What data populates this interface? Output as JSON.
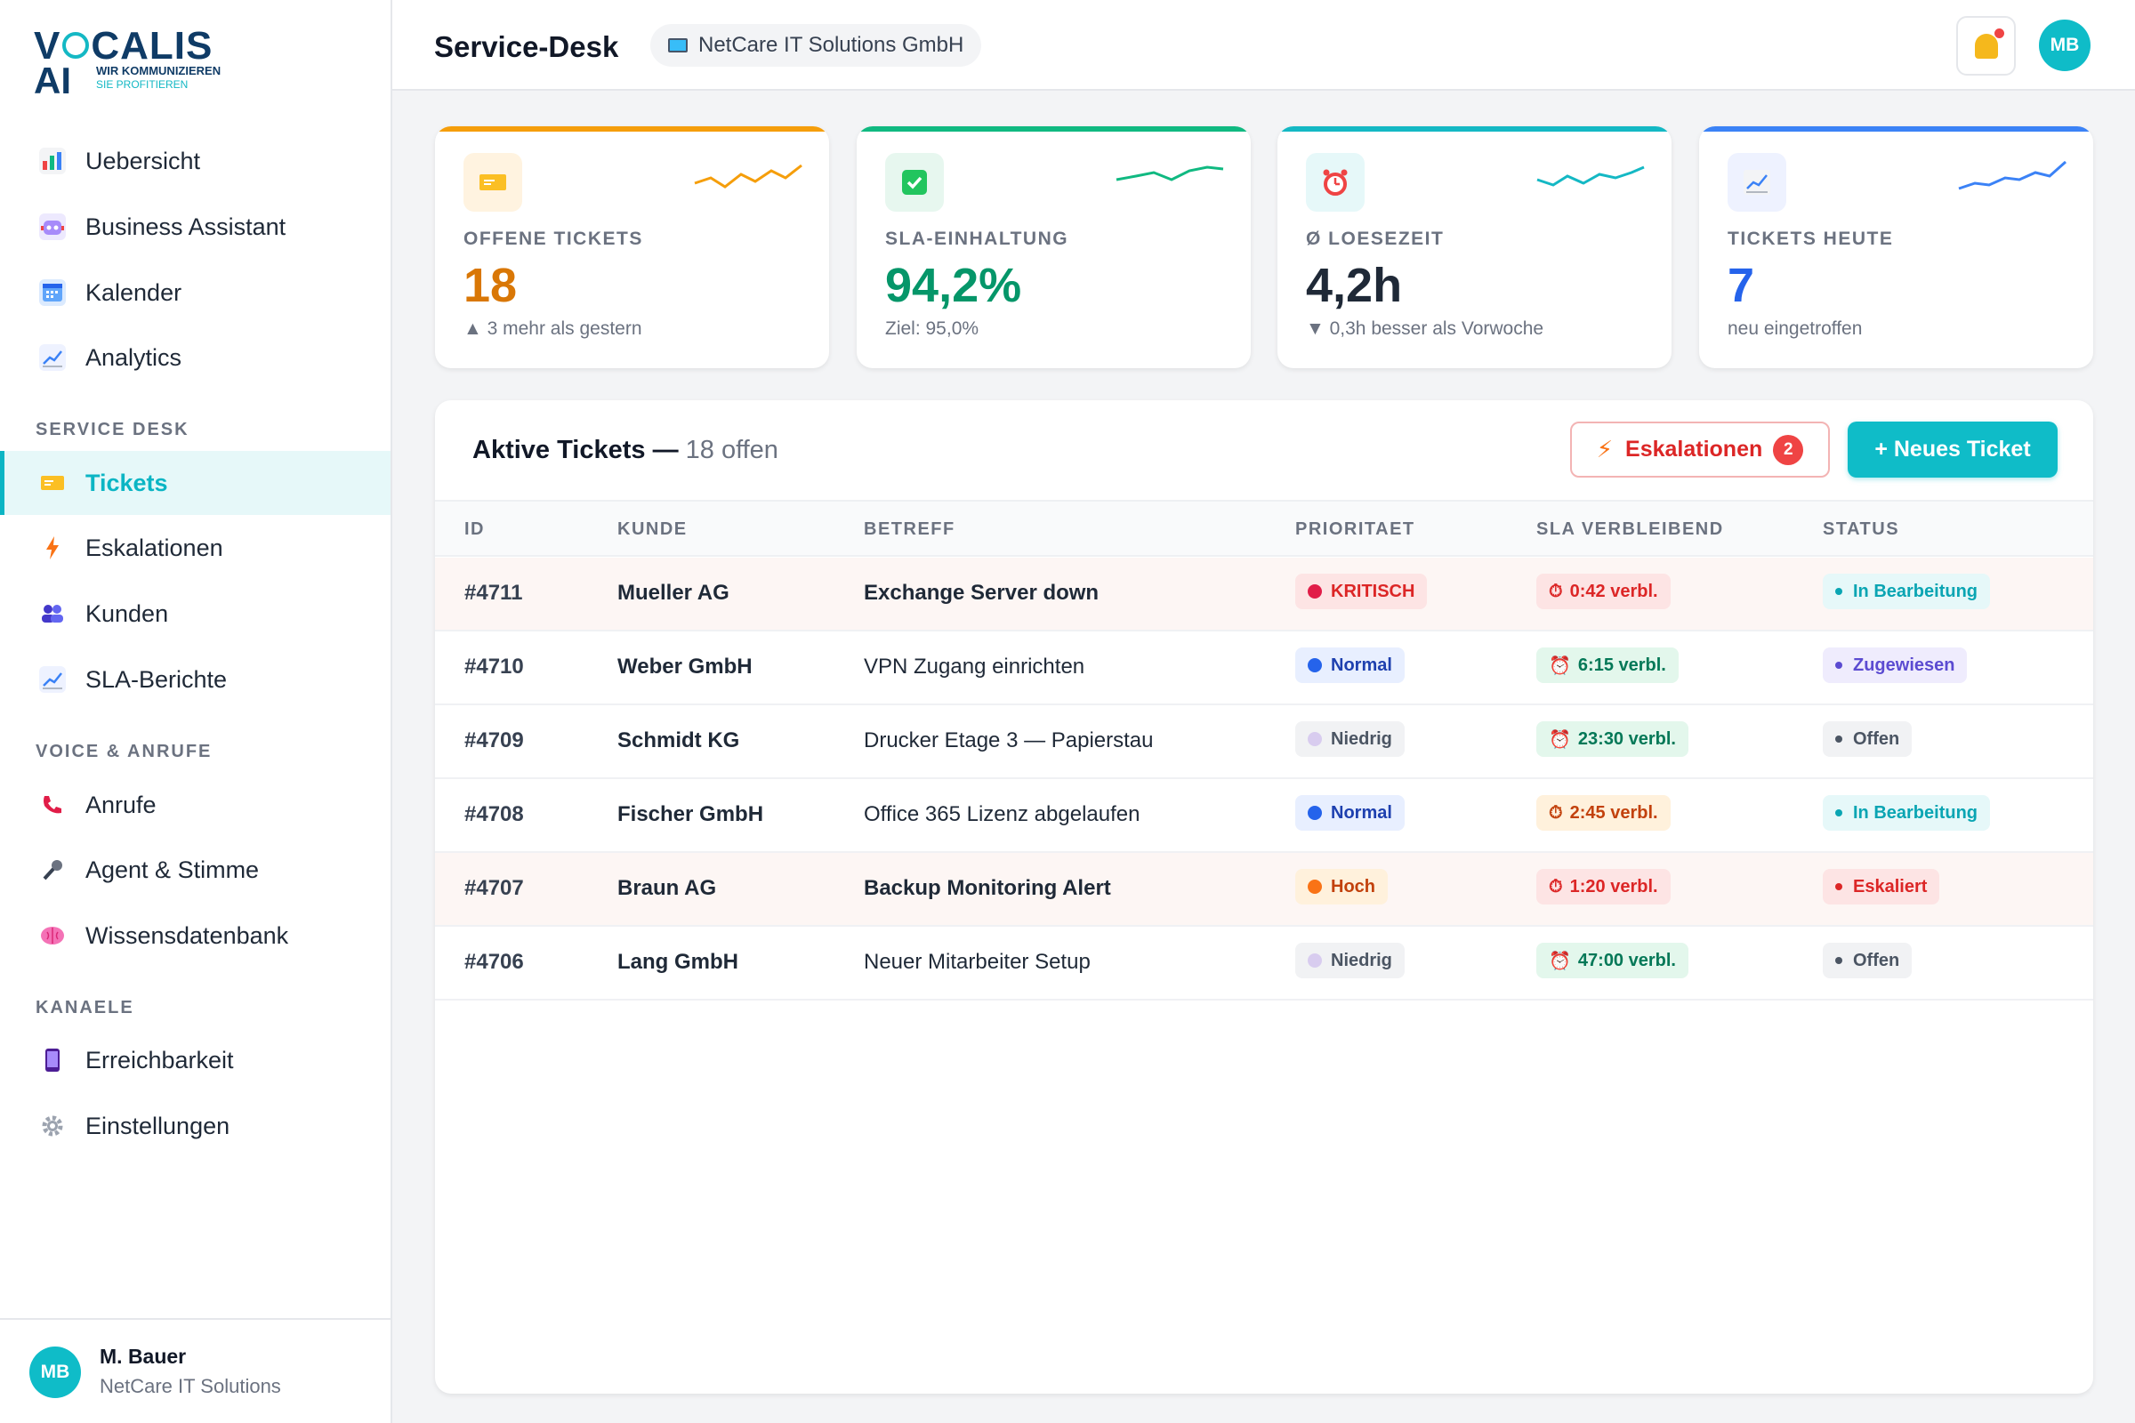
{
  "brand": {
    "line1": "V",
    "line1b": "CALIS",
    "line2": "AI",
    "tag1": "WIR KOMMUNIZIEREN",
    "tag2": "SIE PROFITIEREN"
  },
  "sidebar": {
    "items_top": [
      {
        "label": "Uebersicht",
        "icon": "bar-chart-icon"
      },
      {
        "label": "Business Assistant",
        "icon": "robot-icon"
      },
      {
        "label": "Kalender",
        "icon": "calendar-icon"
      },
      {
        "label": "Analytics",
        "icon": "chart-up-icon"
      }
    ],
    "section_service": "SERVICE DESK",
    "items_service": [
      {
        "label": "Tickets",
        "icon": "ticket-icon"
      },
      {
        "label": "Eskalationen",
        "icon": "lightning-icon"
      },
      {
        "label": "Kunden",
        "icon": "users-icon"
      },
      {
        "label": "SLA-Berichte",
        "icon": "chart-up-icon"
      }
    ],
    "section_voice": "VOICE & ANRUFE",
    "items_voice": [
      {
        "label": "Anrufe",
        "icon": "phone-icon"
      },
      {
        "label": "Agent & Stimme",
        "icon": "microphone-icon"
      },
      {
        "label": "Wissensdatenbank",
        "icon": "brain-icon"
      }
    ],
    "section_channels": "KANAELE",
    "items_channels": [
      {
        "label": "Erreichbarkeit",
        "icon": "phone-device-icon"
      },
      {
        "label": "Einstellungen",
        "icon": "gear-icon"
      }
    ]
  },
  "user": {
    "initials": "MB",
    "name": "M. Bauer",
    "org": "NetCare IT Solutions"
  },
  "header": {
    "title": "Service-Desk",
    "org": "NetCare IT Solutions GmbH",
    "avatar": "MB"
  },
  "kpis": [
    {
      "label": "OFFENE TICKETS",
      "value": "18",
      "sub": "▲ 3 mehr als gestern",
      "color": "#d97706",
      "bar": "#f59e0b",
      "icon_bg": "#fff3e0",
      "spark": "#f59e0b",
      "icon": "ticket-icon"
    },
    {
      "label": "SLA-EINHALTUNG",
      "value": "94,2%",
      "sub": "Ziel: 95,0%",
      "color": "#059669",
      "bar": "#10b981",
      "icon_bg": "#e7f7ef",
      "spark": "#10b981",
      "icon": "check-icon"
    },
    {
      "label": "Ø LOESEZEIT",
      "value": "4,2h",
      "sub": "▼ 0,3h besser als Vorwoche",
      "color": "#1f2937",
      "bar": "#14b8c4",
      "icon_bg": "#e6f8f9",
      "spark": "#14b8c4",
      "icon": "alarm-clock-icon"
    },
    {
      "label": "TICKETS HEUTE",
      "value": "7",
      "sub": "neu eingetroffen",
      "color": "#2563eb",
      "bar": "#3b82f6",
      "icon_bg": "#eef2ff",
      "spark": "#3b82f6",
      "icon": "chart-up-icon"
    }
  ],
  "table": {
    "title": "Aktive Tickets —",
    "title_muted": "18 offen",
    "escalations_label": "Eskalationen",
    "escalations_count": "2",
    "new_ticket_label": "+ Neues Ticket",
    "columns": [
      "ID",
      "KUNDE",
      "BETREFF",
      "PRIORITAET",
      "SLA VERBLEIBEND",
      "STATUS"
    ],
    "rows": [
      {
        "id": "#4711",
        "kunde": "Mueller AG",
        "betreff": "Exchange Server down",
        "bold": true,
        "highlight": true,
        "prio": "KRITISCH",
        "prio_bg": "#fde4e4",
        "prio_fg": "#dc2626",
        "prio_dot": "#e11d48",
        "sla": "0:42 verbl.",
        "sla_bg": "#fde4e4",
        "sla_fg": "#dc2626",
        "sla_icon": "⏱",
        "status": "In Bearbeitung",
        "status_bg": "#e6f8f9",
        "status_fg": "#0aa5b3"
      },
      {
        "id": "#4710",
        "kunde": "Weber GmbH",
        "betreff": "VPN Zugang einrichten",
        "bold": false,
        "highlight": false,
        "prio": "Normal",
        "prio_bg": "#e8efff",
        "prio_fg": "#1e40af",
        "prio_dot": "#2563eb",
        "sla": "6:15 verbl.",
        "sla_bg": "#e3f7ec",
        "sla_fg": "#047857",
        "sla_icon": "⏰",
        "status": "Zugewiesen",
        "status_bg": "#efecfd",
        "status_fg": "#5b4bd1"
      },
      {
        "id": "#4709",
        "kunde": "Schmidt KG",
        "betreff": "Drucker Etage 3 — Papierstau",
        "bold": false,
        "highlight": false,
        "prio": "Niedrig",
        "prio_bg": "#f1f2f4",
        "prio_fg": "#4b5563",
        "prio_dot": "#d8ccef",
        "sla": "23:30 verbl.",
        "sla_bg": "#e3f7ec",
        "sla_fg": "#047857",
        "sla_icon": "⏰",
        "status": "Offen",
        "status_bg": "#f1f2f4",
        "status_fg": "#4b5563"
      },
      {
        "id": "#4708",
        "kunde": "Fischer GmbH",
        "betreff": "Office 365 Lizenz abgelaufen",
        "bold": false,
        "highlight": false,
        "prio": "Normal",
        "prio_bg": "#e8efff",
        "prio_fg": "#1e40af",
        "prio_dot": "#2563eb",
        "sla": "2:45 verbl.",
        "sla_bg": "#fff1dc",
        "sla_fg": "#c2410c",
        "sla_icon": "⏱",
        "status": "In Bearbeitung",
        "status_bg": "#e6f8f9",
        "status_fg": "#0aa5b3"
      },
      {
        "id": "#4707",
        "kunde": "Braun AG",
        "betreff": "Backup Monitoring Alert",
        "bold": true,
        "highlight": true,
        "prio": "Hoch",
        "prio_bg": "#fff1dc",
        "prio_fg": "#c2410c",
        "prio_dot": "#f97316",
        "sla": "1:20 verbl.",
        "sla_bg": "#fde4e4",
        "sla_fg": "#dc2626",
        "sla_icon": "⏱",
        "status": "Eskaliert",
        "status_bg": "#fde4e4",
        "status_fg": "#dc2626"
      },
      {
        "id": "#4706",
        "kunde": "Lang GmbH",
        "betreff": "Neuer Mitarbeiter Setup",
        "bold": false,
        "highlight": false,
        "prio": "Niedrig",
        "prio_bg": "#f1f2f4",
        "prio_fg": "#4b5563",
        "prio_dot": "#d8ccef",
        "sla": "47:00 verbl.",
        "sla_bg": "#e3f7ec",
        "sla_fg": "#047857",
        "sla_icon": "⏰",
        "status": "Offen",
        "status_bg": "#f1f2f4",
        "status_fg": "#4b5563"
      }
    ]
  }
}
